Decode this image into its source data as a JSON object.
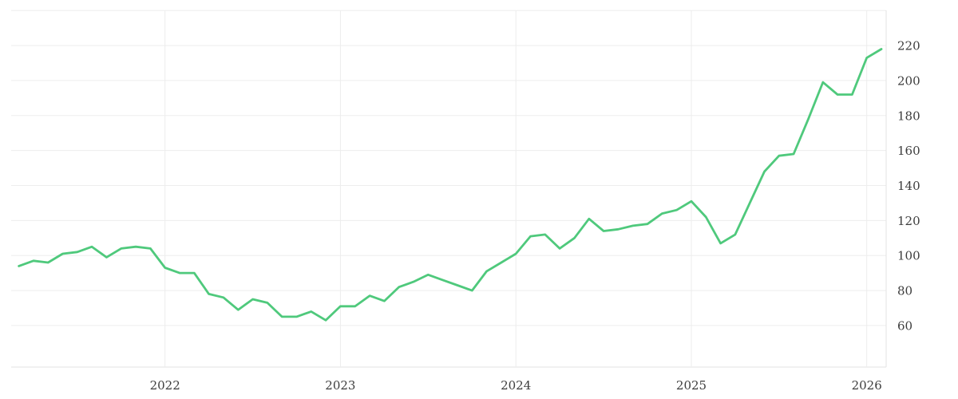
{
  "chart_data": {
    "type": "line",
    "title": "",
    "xlabel": "",
    "ylabel": "",
    "frequency": "monthly",
    "x": [
      "2021-03",
      "2021-04",
      "2021-05",
      "2021-06",
      "2021-07",
      "2021-08",
      "2021-09",
      "2021-10",
      "2021-11",
      "2021-12",
      "2022-01",
      "2022-02",
      "2022-03",
      "2022-04",
      "2022-05",
      "2022-06",
      "2022-07",
      "2022-08",
      "2022-09",
      "2022-10",
      "2022-11",
      "2022-12",
      "2023-01",
      "2023-02",
      "2023-03",
      "2023-04",
      "2023-05",
      "2023-06",
      "2023-07",
      "2023-08",
      "2023-09",
      "2023-10",
      "2023-11",
      "2023-12",
      "2024-01",
      "2024-02",
      "2024-03",
      "2024-04",
      "2024-05",
      "2024-06",
      "2024-07",
      "2024-08",
      "2024-09",
      "2024-10",
      "2024-11",
      "2024-12",
      "2025-01",
      "2025-02",
      "2025-03",
      "2025-04",
      "2025-05",
      "2025-06",
      "2025-07",
      "2025-08",
      "2025-09",
      "2025-10",
      "2025-11",
      "2025-12",
      "2026-01",
      "2026-02"
    ],
    "series": [
      {
        "name": "price",
        "color": "#4fc97c",
        "values": [
          94,
          97,
          96,
          101,
          102,
          105,
          99,
          104,
          105,
          104,
          93,
          90,
          90,
          78,
          76,
          69,
          75,
          73,
          65,
          65,
          68,
          63,
          71,
          71,
          77,
          74,
          82,
          85,
          89,
          86,
          83,
          80,
          91,
          96,
          101,
          111,
          112,
          104,
          110,
          121,
          114,
          115,
          117,
          118,
          124,
          126,
          131,
          122,
          107,
          112,
          130,
          148,
          157,
          158,
          178,
          199,
          192,
          192,
          213,
          218
        ]
      }
    ],
    "x_tick_labels": [
      "2022",
      "2023",
      "2024",
      "2025",
      "2026"
    ],
    "y_tick_labels": [
      "220",
      "200",
      "180",
      "160",
      "140",
      "120",
      "100",
      "80",
      "60"
    ],
    "y_ticks": [
      220,
      200,
      180,
      160,
      140,
      120,
      100,
      80,
      60
    ],
    "y_gridline_values": [
      240,
      220,
      200,
      180,
      160,
      140,
      120,
      100,
      80,
      60
    ],
    "ylim": [
      36,
      240
    ],
    "y_axis_side": "right",
    "grid": true,
    "legend": "none",
    "background_color": "#ffffff",
    "gridline_color": "#ededed",
    "axis_line_color": "#e3e3e3",
    "tick_label_color": "#3d3d3d"
  }
}
